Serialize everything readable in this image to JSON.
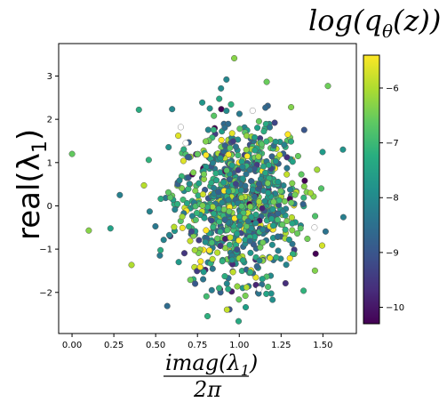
{
  "chart_data": {
    "type": "scatter",
    "title": "log(q_θ(z))",
    "xlabel": "imag(λ_1) / 2π",
    "ylabel": "real(λ_1)",
    "xlim": [
      -0.08,
      1.7
    ],
    "ylim": [
      -2.95,
      3.75
    ],
    "x_ticks": [
      0.0,
      0.25,
      0.5,
      0.75,
      1.0,
      1.25,
      1.5
    ],
    "x_tick_labels": [
      "0.00",
      "0.25",
      "0.50",
      "0.75",
      "1.00",
      "1.25",
      "1.50"
    ],
    "y_ticks": [
      -2,
      -1,
      0,
      1,
      2,
      3
    ],
    "y_tick_labels": [
      "−2",
      "−1",
      "0",
      "1",
      "2",
      "3"
    ],
    "colorbar": {
      "label": "log(q_θ(z))",
      "min": -10.3,
      "max": -5.4,
      "ticks": [
        -10,
        -9,
        -8,
        -7,
        -6
      ],
      "tick_labels": [
        "−10",
        "−9",
        "−8",
        "−7",
        "−6"
      ],
      "colormap": "viridis"
    },
    "grid": false,
    "marker_edge_color": "#555555",
    "distribution": {
      "n_points": 900,
      "x_center": 1.0,
      "x_sd": 0.19,
      "y_center": 0.1,
      "y_sd": 0.95
    },
    "notable_points": [
      {
        "x": 0.0,
        "y": 1.2,
        "c": -6.6
      },
      {
        "x": 0.1,
        "y": -0.57,
        "c": -6.3
      },
      {
        "x": 0.23,
        "y": -0.52,
        "c": -7.5
      },
      {
        "x": 0.4,
        "y": 2.22,
        "c": -7.3
      },
      {
        "x": 0.97,
        "y": 3.41,
        "c": -6.3
      },
      {
        "x": 1.62,
        "y": 1.3,
        "c": -7.8
      },
      {
        "x": 1.53,
        "y": 2.77,
        "c": -6.5
      },
      {
        "x": 0.81,
        "y": -2.55,
        "c": -7.2
      }
    ]
  }
}
